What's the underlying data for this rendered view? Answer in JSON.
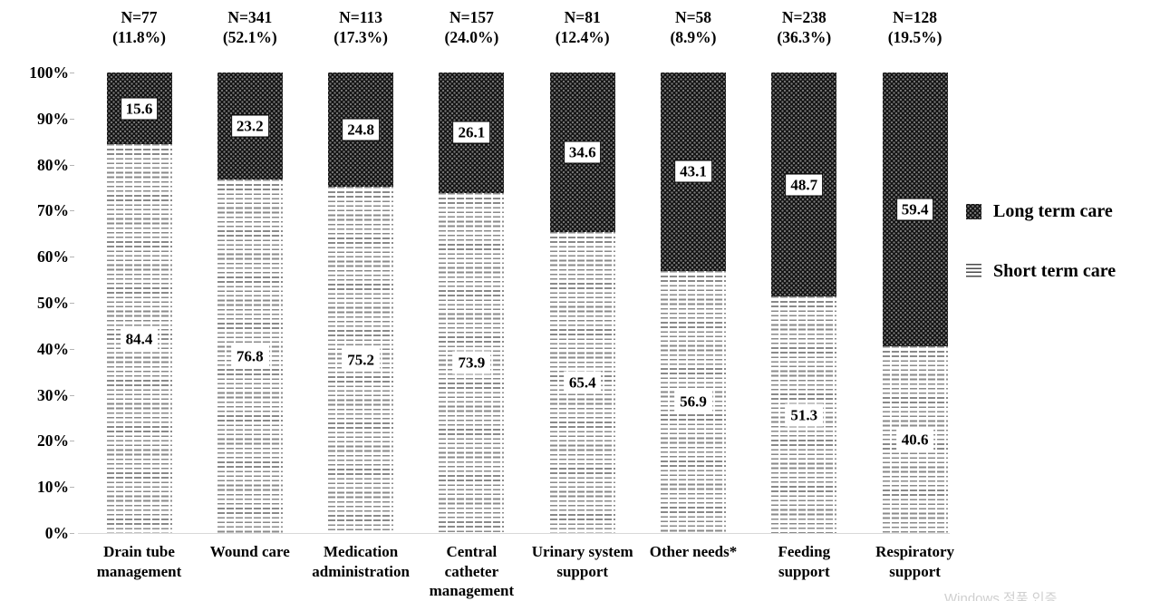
{
  "chart_data": {
    "type": "bar",
    "stacked": true,
    "unit": "percent",
    "title": "",
    "xlabel": "",
    "ylabel": "",
    "ylim": [
      0,
      100
    ],
    "grid": false,
    "legend_position": "right",
    "categories": [
      "Drain tube management",
      "Wound care",
      "Medication administration",
      "Central catheter management",
      "Urinary system support",
      "Other needs*",
      "Feeding support",
      "Respiratory support"
    ],
    "categories_lines": [
      [
        "Drain tube",
        "management"
      ],
      [
        "Wound care"
      ],
      [
        "Medication",
        "administration"
      ],
      [
        "Central",
        "catheter",
        "management"
      ],
      [
        "Urinary system",
        "support"
      ],
      [
        "Other needs*"
      ],
      [
        "Feeding",
        "support"
      ],
      [
        "Respiratory",
        "support"
      ]
    ],
    "n_labels": [
      {
        "n": "N=77",
        "pct": "(11.8%)"
      },
      {
        "n": "N=341",
        "pct": "(52.1%)"
      },
      {
        "n": "N=113",
        "pct": "(17.3%)"
      },
      {
        "n": "N=157",
        "pct": "(24.0%)"
      },
      {
        "n": "N=81",
        "pct": "(12.4%)"
      },
      {
        "n": "N=58",
        "pct": "(8.9%)"
      },
      {
        "n": "N=238",
        "pct": "(36.3%)"
      },
      {
        "n": "N=128",
        "pct": "(19.5%)"
      }
    ],
    "series": [
      {
        "name": "Long term care",
        "pattern": "dark-dot-lattice",
        "values": [
          15.6,
          23.2,
          24.8,
          26.1,
          34.6,
          43.1,
          48.7,
          59.4
        ]
      },
      {
        "name": "Short term care",
        "pattern": "horizontal-dashed-lines",
        "values": [
          84.4,
          76.8,
          75.2,
          73.9,
          65.4,
          56.9,
          51.3,
          40.6
        ]
      }
    ],
    "y_ticks": [
      "100%",
      "90%",
      "80%",
      "70%",
      "60%",
      "50%",
      "40%",
      "30%",
      "20%",
      "10%",
      "0%"
    ]
  },
  "legend": {
    "items": [
      "Long term care",
      "Short term care"
    ]
  },
  "watermark": "Windows 정품 인증",
  "colors": {
    "text": "#000000",
    "bar_dark": "#121212",
    "bar_dot": "#7a7a7a",
    "bar_stripe": "#8a8a8a",
    "axis_line": "#d9d9d9",
    "watermark": "#cfcfcf"
  }
}
